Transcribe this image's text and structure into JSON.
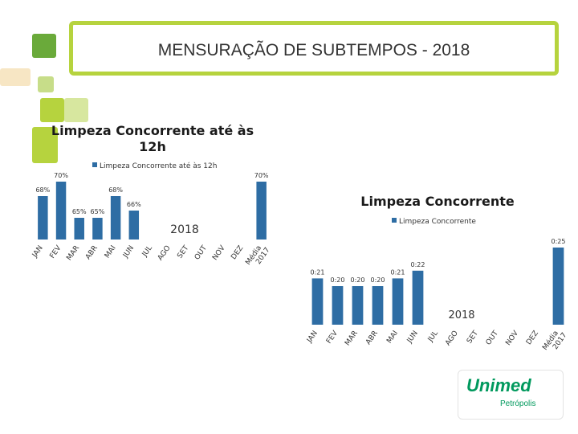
{
  "slide": {
    "title": "MENSURAÇÃO DE SUBTEMPOS - 2018",
    "logo": {
      "brand": "Unimed",
      "city": "Petrópolis",
      "color": "#00995d"
    },
    "accent": "#b6d33e"
  },
  "chart_data": [
    {
      "type": "bar",
      "title": "Limpeza Concorrente até às 12h",
      "legend": "Limpeza Concorrente até às 12h",
      "year_label": "2018",
      "categories": [
        "JAN",
        "FEV",
        "MAR",
        "ABR",
        "MAI",
        "JUN",
        "JUL",
        "AGO",
        "SET",
        "OUT",
        "NOV",
        "DEZ",
        "Média 2017"
      ],
      "values": [
        68,
        70,
        65,
        65,
        68,
        66,
        null,
        null,
        null,
        null,
        null,
        null,
        70
      ],
      "labels": [
        "68%",
        "70%",
        "65%",
        "65%",
        "68%",
        "66%",
        "",
        "",
        "",
        "",
        "",
        "",
        "70%"
      ],
      "color": "#2e6da4"
    },
    {
      "type": "bar",
      "title": "Limpeza Concorrente",
      "legend": "Limpeza Concorrente",
      "year_label": "2018",
      "categories": [
        "JAN",
        "FEV",
        "MAR",
        "ABR",
        "MAI",
        "JUN",
        "JUL",
        "AGO",
        "SET",
        "OUT",
        "NOV",
        "DEZ",
        "Média 2017"
      ],
      "values": [
        "0:21",
        "0:20",
        "0:20",
        "0:20",
        "0:21",
        "0:22",
        null,
        null,
        null,
        null,
        null,
        null,
        "0:25"
      ],
      "labels": [
        "0:21",
        "0:20",
        "0:20",
        "0:20",
        "0:21",
        "0:22",
        "",
        "",
        "",
        "",
        "",
        "",
        "0:25"
      ],
      "color": "#2e6da4"
    }
  ]
}
